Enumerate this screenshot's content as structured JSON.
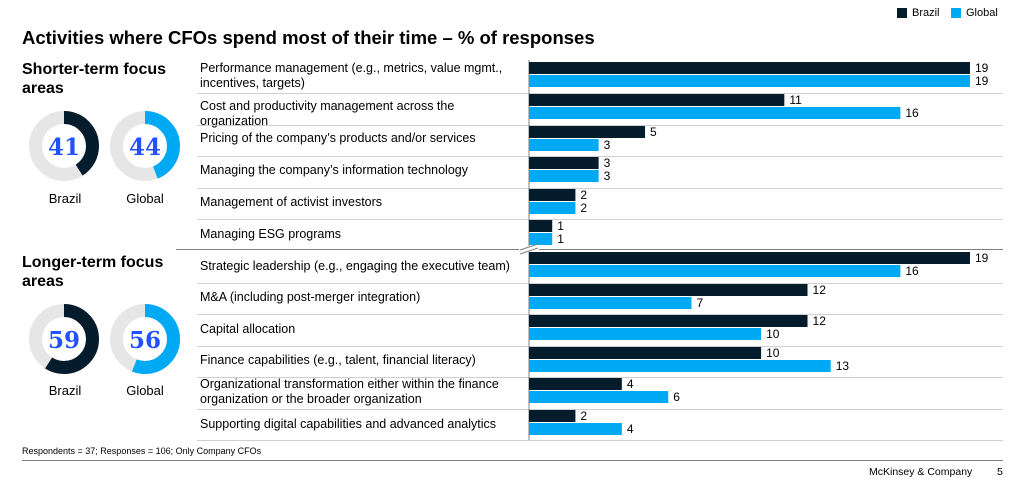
{
  "title": "Activities where CFOs spend most of their time – % of responses",
  "legend": [
    {
      "label": "Brazil",
      "color": "#051C2C"
    },
    {
      "label": "Global",
      "color": "#00A9F4"
    }
  ],
  "sections": [
    {
      "title": "Shorter-term focus areas",
      "donuts": [
        {
          "label": "Brazil",
          "value": 41,
          "color": "#051C2C"
        },
        {
          "label": "Global",
          "value": 44,
          "color": "#00A9F4"
        }
      ]
    },
    {
      "title": "Longer-term focus areas",
      "donuts": [
        {
          "label": "Brazil",
          "value": 59,
          "color": "#051C2C"
        },
        {
          "label": "Global",
          "value": 56,
          "color": "#00A9F4"
        }
      ]
    }
  ],
  "chart_data": {
    "type": "bar",
    "orientation": "horizontal",
    "title": "Activities where CFOs spend most of their time – % of responses",
    "categories": [
      "Performance management (e.g., metrics, value mgmt., incentives, targets)",
      "Cost and productivity management across the organization",
      "Pricing of the company’s products and/or services",
      "Managing the company’s information technology",
      "Management of activist investors",
      "Managing ESG programs",
      "Strategic leadership (e.g., engaging the executive team)",
      "M&A (including post-merger integration)",
      "Capital allocation",
      "Finance capabilities (e.g., talent, financial literacy)",
      "Organizational transformation either within the finance organization or the broader organization",
      "Supporting digital capabilities and advanced analytics"
    ],
    "series": [
      {
        "name": "Brazil",
        "values": [
          19,
          11,
          5,
          3,
          2,
          1,
          19,
          12,
          12,
          10,
          4,
          2
        ]
      },
      {
        "name": "Global",
        "values": [
          19,
          16,
          3,
          3,
          2,
          1,
          16,
          7,
          10,
          13,
          6,
          4
        ]
      }
    ],
    "xlim": [
      0,
      19
    ],
    "axis_break": true
  },
  "footnote": "Respondents = 37; Responses = 106; Only Company CFOs",
  "brand": "McKinsey & Company",
  "page_number": "5"
}
